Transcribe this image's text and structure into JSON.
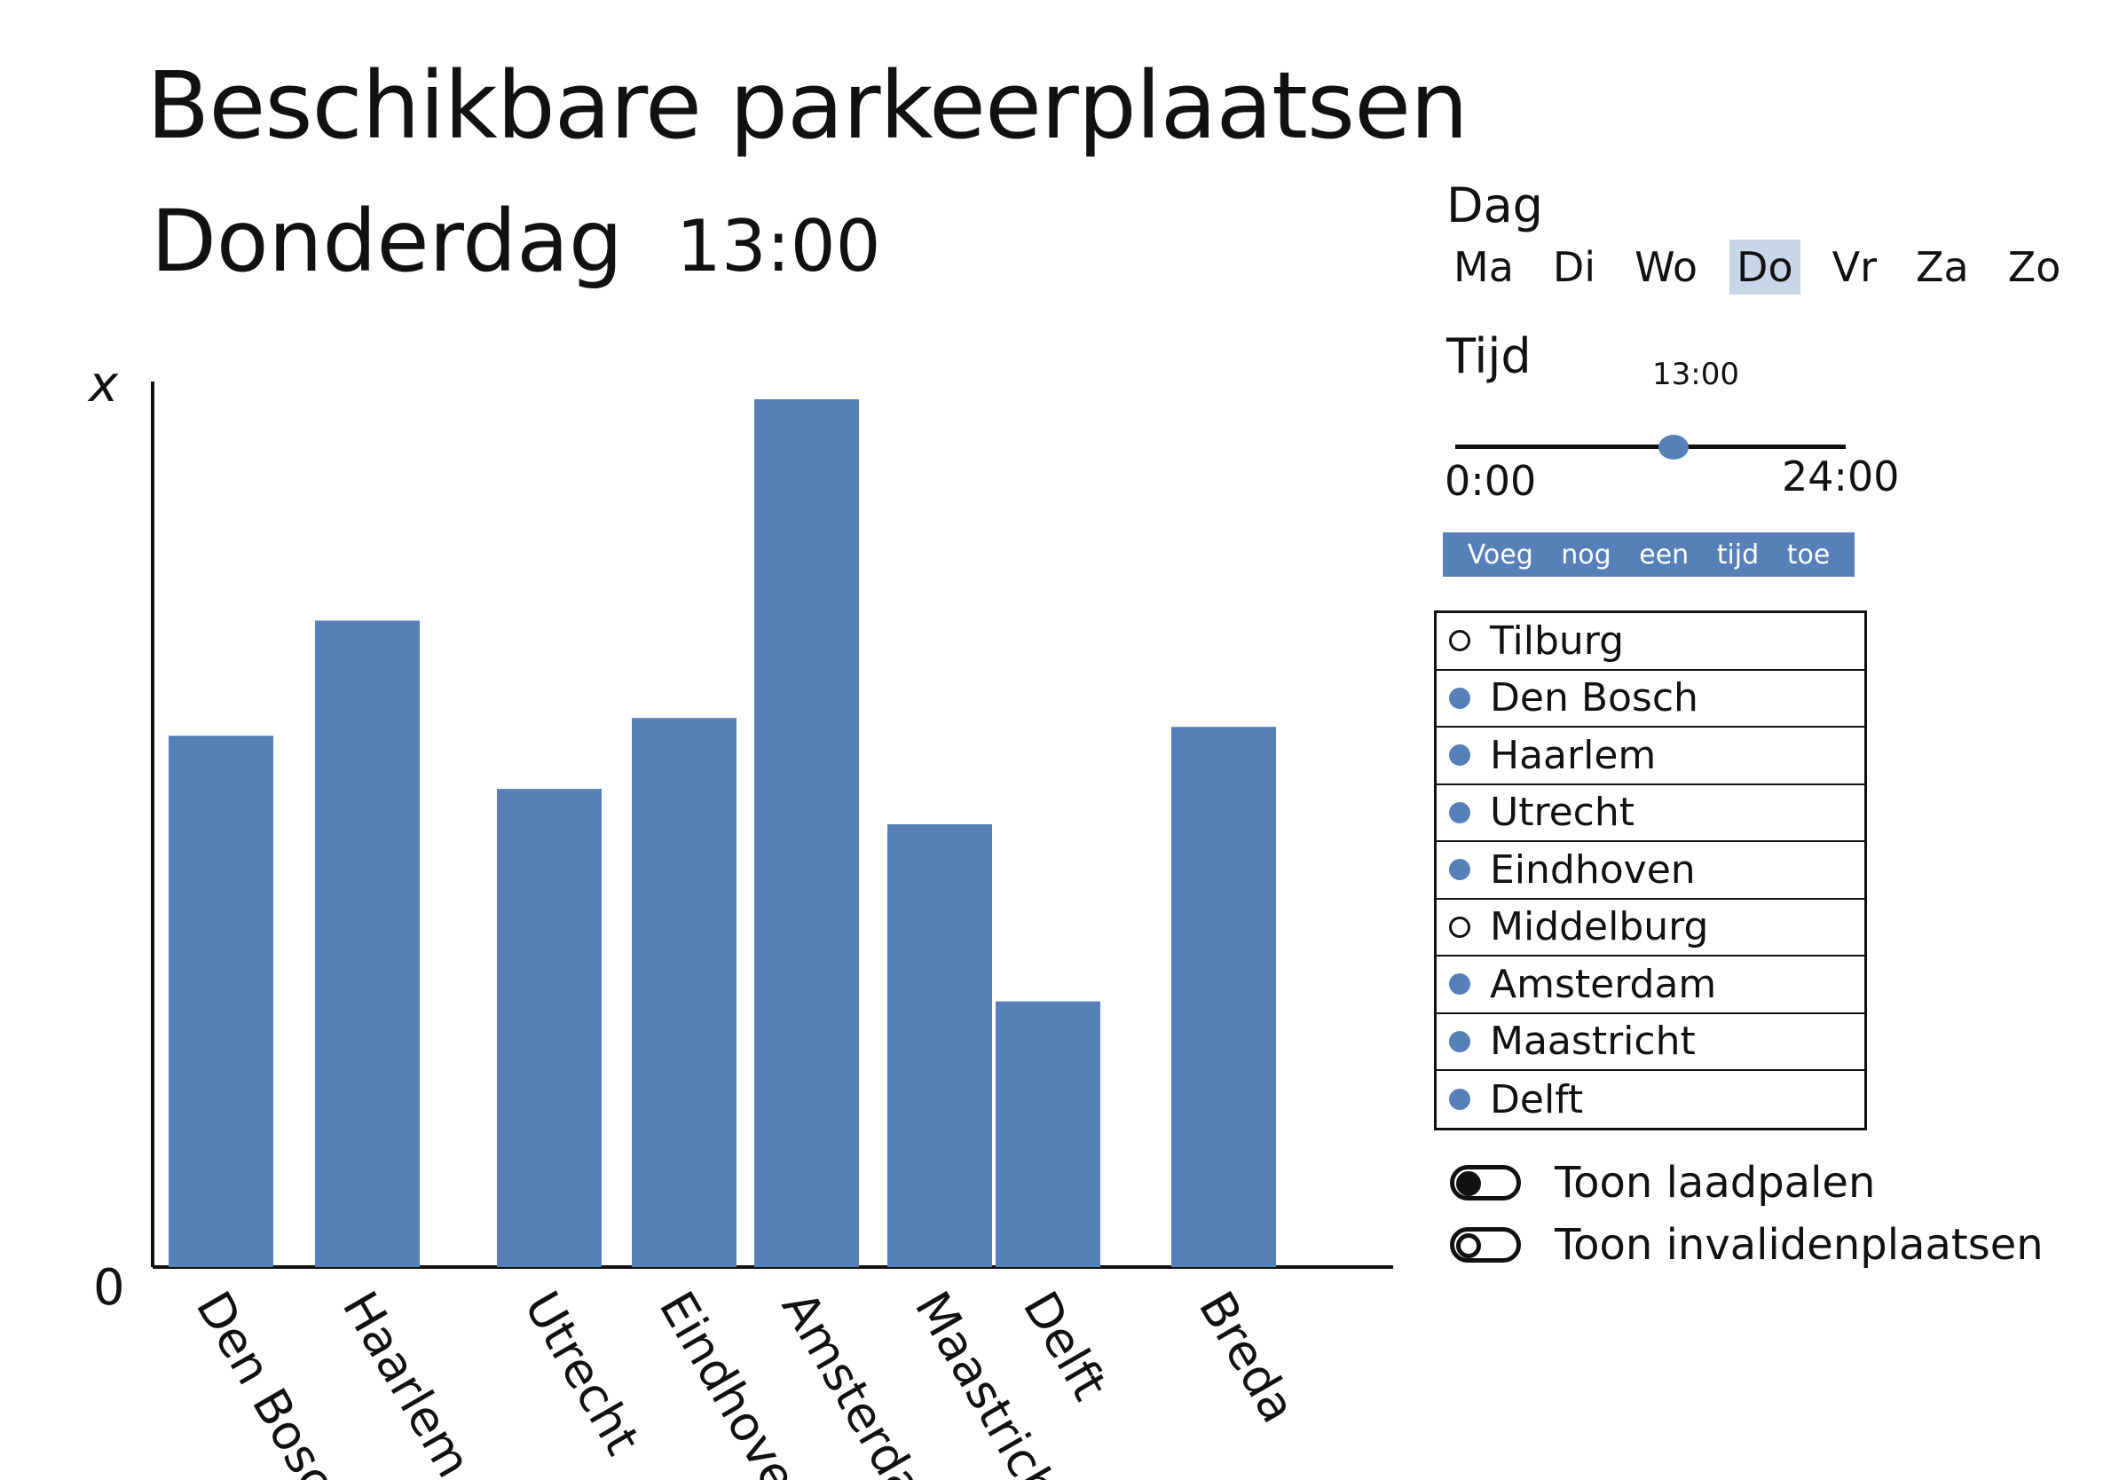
{
  "header": {
    "title": "Beschikbare parkeerplaatsen",
    "day": "Donderdag",
    "time": "13:00"
  },
  "chart_data": {
    "type": "bar",
    "categories": [
      "Den Bosch",
      "Haarlem",
      "Utrecht",
      "Eindhoven",
      "Amsterdam",
      "Maastricht",
      "Delft",
      "Breda"
    ],
    "values": [
      60,
      73,
      54,
      62,
      98,
      50,
      30,
      61
    ],
    "ylim": [
      0,
      100
    ],
    "yticks": [
      "0",
      "x"
    ],
    "bar_color": "#5780b9",
    "grid": false
  },
  "controls": {
    "dag_label": "Dag",
    "days": [
      {
        "label": "Ma",
        "active": false
      },
      {
        "label": "Di",
        "active": false
      },
      {
        "label": "Wo",
        "active": false
      },
      {
        "label": "Do",
        "active": true
      },
      {
        "label": "Vr",
        "active": false
      },
      {
        "label": "Za",
        "active": false
      },
      {
        "label": "Zo",
        "active": false
      }
    ],
    "tijd_label": "Tijd",
    "slider": {
      "value": "13:00",
      "min": "0:00",
      "max": "24:00",
      "fraction": 0.56
    },
    "add_button": "Voeg nog een tijd toe",
    "cities": [
      {
        "label": "Tilburg",
        "selected": false
      },
      {
        "label": "Den Bosch",
        "selected": true
      },
      {
        "label": "Haarlem",
        "selected": true
      },
      {
        "label": "Utrecht",
        "selected": true
      },
      {
        "label": "Eindhoven",
        "selected": true
      },
      {
        "label": "Middelburg",
        "selected": false
      },
      {
        "label": "Amsterdam",
        "selected": true
      },
      {
        "label": "Maastricht",
        "selected": true
      },
      {
        "label": "Delft",
        "selected": true
      }
    ],
    "toggles": [
      {
        "label": "Toon laadpalen",
        "on": true
      },
      {
        "label": "Toon invalidenplaatsen",
        "on": false
      }
    ]
  }
}
